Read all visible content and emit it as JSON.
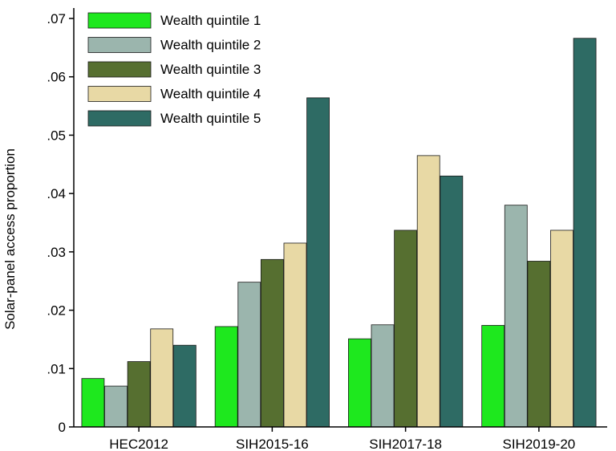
{
  "chart_data": {
    "type": "bar",
    "title": "",
    "xlabel": "",
    "ylabel": "Solar-panel access proportion",
    "ylim": [
      0,
      0.07
    ],
    "yticks": [
      0,
      0.01,
      0.02,
      0.03,
      0.04,
      0.05,
      0.06,
      0.07
    ],
    "ytick_labels": [
      "0",
      ".01",
      ".02",
      ".03",
      ".04",
      ".05",
      ".06",
      ".07"
    ],
    "grid": false,
    "legend_position": "top-left",
    "categories": [
      "HEC2012",
      "SIH2015-16",
      "SIH2017-18",
      "SIH2019-20"
    ],
    "series": [
      {
        "name": "Wealth quintile 1",
        "color": "#1ee81e",
        "values": [
          0.0083,
          0.0172,
          0.0151,
          0.0174
        ]
      },
      {
        "name": "Wealth quintile 2",
        "color": "#9bb5ad",
        "values": [
          0.007,
          0.0248,
          0.0175,
          0.038
        ]
      },
      {
        "name": "Wealth quintile 3",
        "color": "#566f30",
        "values": [
          0.0112,
          0.0287,
          0.0337,
          0.0284
        ]
      },
      {
        "name": "Wealth quintile 4",
        "color": "#e8d9a5",
        "values": [
          0.0168,
          0.0315,
          0.0465,
          0.0337
        ]
      },
      {
        "name": "Wealth quintile 5",
        "color": "#2e6b64",
        "values": [
          0.014,
          0.0564,
          0.043,
          0.0666
        ]
      }
    ]
  }
}
